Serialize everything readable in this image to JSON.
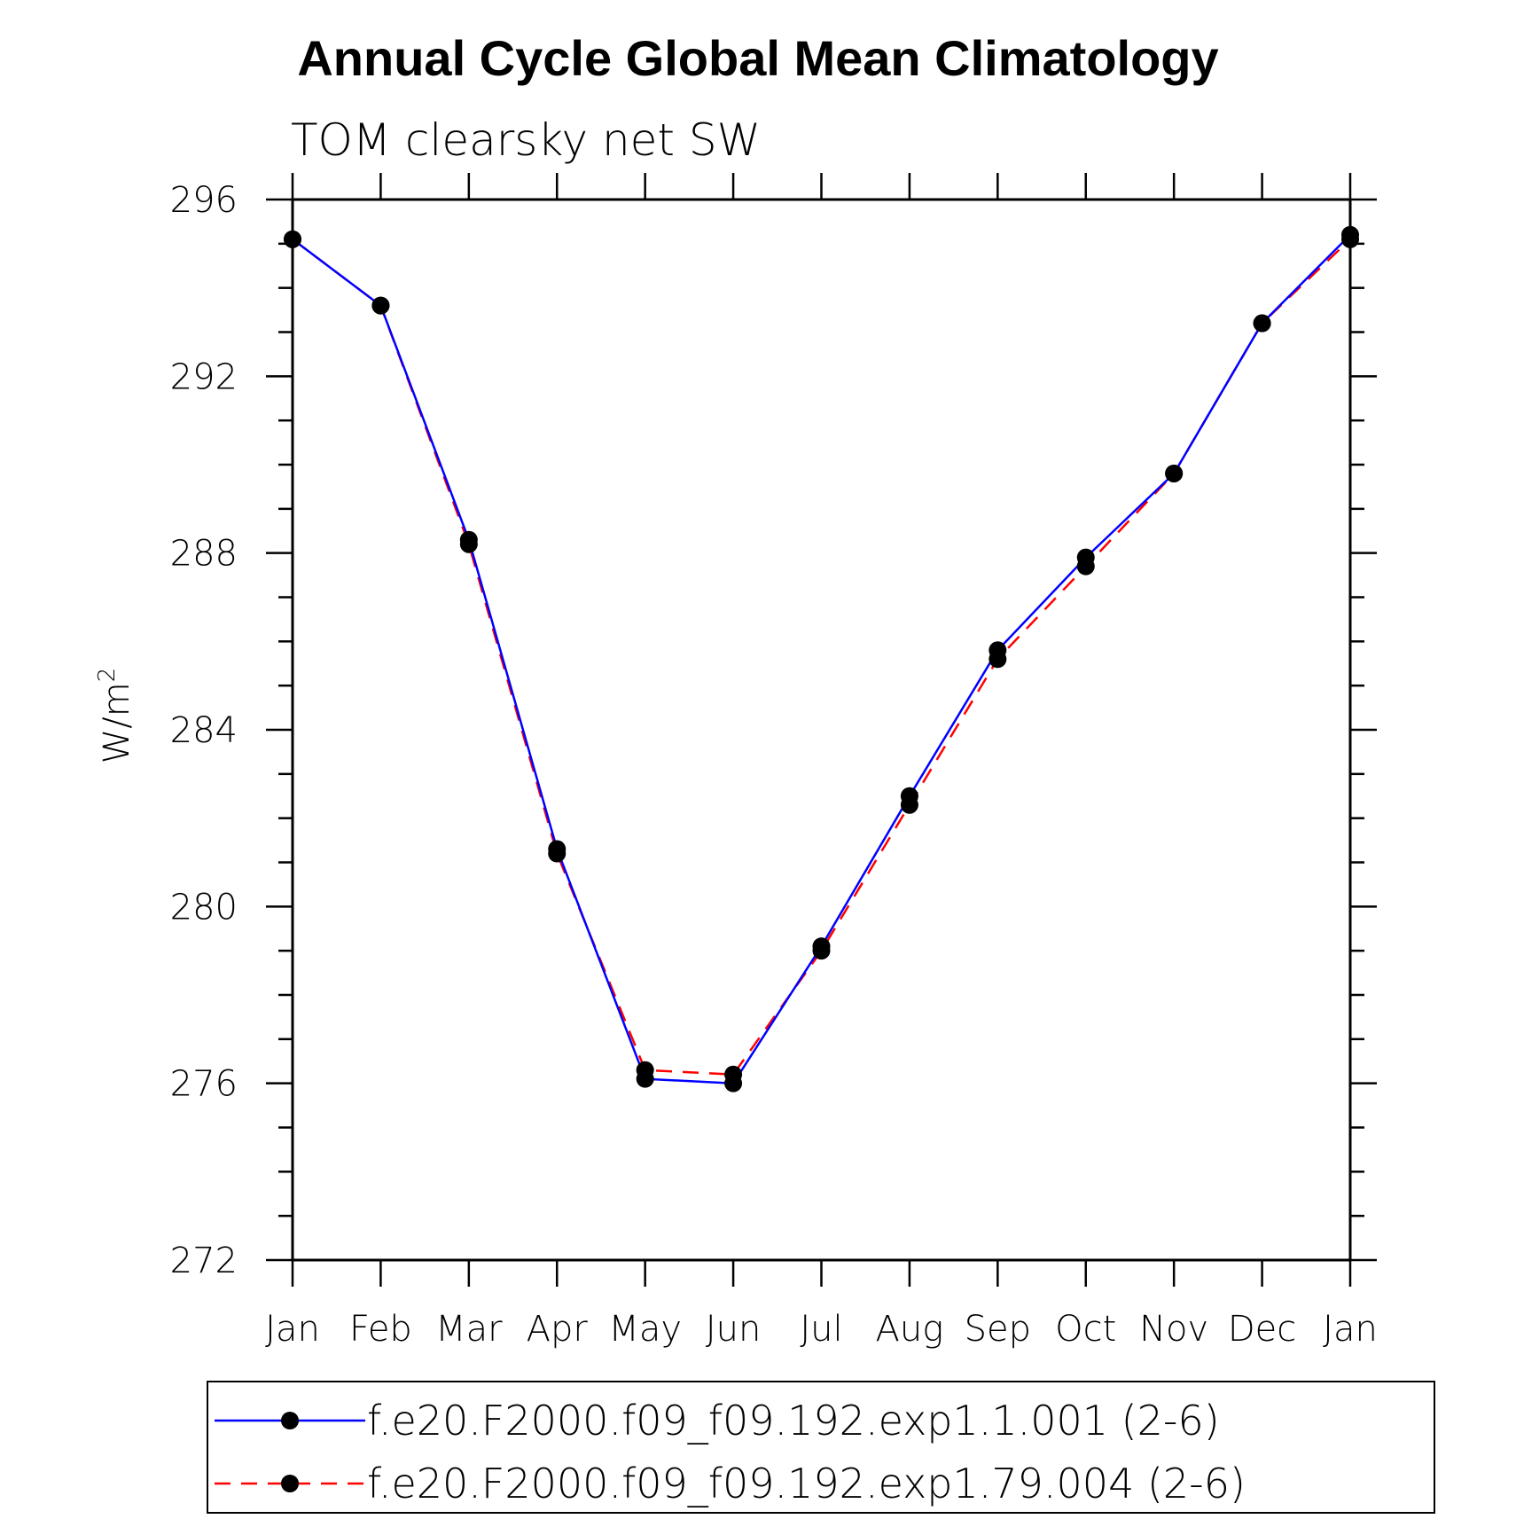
{
  "chart_data": {
    "type": "line",
    "title": "Annual Cycle Global Mean Climatology",
    "subtitle": "TOM clearsky net SW",
    "ylabel": "W/m",
    "ylabel_superscript": "2",
    "xlabel": "",
    "categories": [
      "Jan",
      "Feb",
      "Mar",
      "Apr",
      "May",
      "Jun",
      "Jul",
      "Aug",
      "Sep",
      "Oct",
      "Nov",
      "Dec",
      "Jan"
    ],
    "ylim": [
      272,
      296
    ],
    "yticks": [
      "272",
      "276",
      "280",
      "284",
      "288",
      "292",
      "296"
    ],
    "grid": false,
    "legend_position": "bottom",
    "series": [
      {
        "name": "f.e20.F2000.f09_f09.192.exp1.1.001 (2-6)",
        "color": "#0000ff",
        "style": "solid",
        "marker": "filled-circle",
        "values": [
          295.1,
          293.6,
          288.3,
          281.3,
          276.1,
          276.0,
          279.1,
          282.5,
          285.8,
          287.9,
          289.8,
          293.2,
          295.2
        ]
      },
      {
        "name": "f.e20.F2000.f09_f09.192.exp1.79.004 (2-6)",
        "color": "#ff0000",
        "style": "dashed",
        "marker": "filled-circle",
        "values": [
          295.1,
          293.6,
          288.2,
          281.2,
          276.3,
          276.2,
          279.0,
          282.3,
          285.6,
          287.7,
          289.8,
          293.2,
          295.1
        ]
      }
    ]
  }
}
